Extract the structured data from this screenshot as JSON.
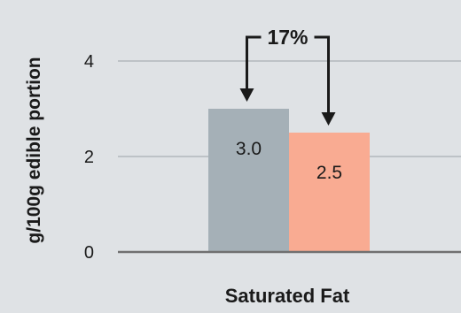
{
  "chart_data": {
    "type": "bar",
    "ylabel": "g/100g edible portion",
    "categories": [
      "Saturated Fat"
    ],
    "series": [
      {
        "values": [
          3.0
        ],
        "color": "#a5b0b7",
        "label": "3.0"
      },
      {
        "values": [
          2.5
        ],
        "color": "#f9ab92",
        "label": "2.5"
      }
    ],
    "ylim": [
      0,
      5
    ],
    "yticks": [
      0,
      2,
      4
    ],
    "grid": true,
    "annotation": "17%"
  }
}
